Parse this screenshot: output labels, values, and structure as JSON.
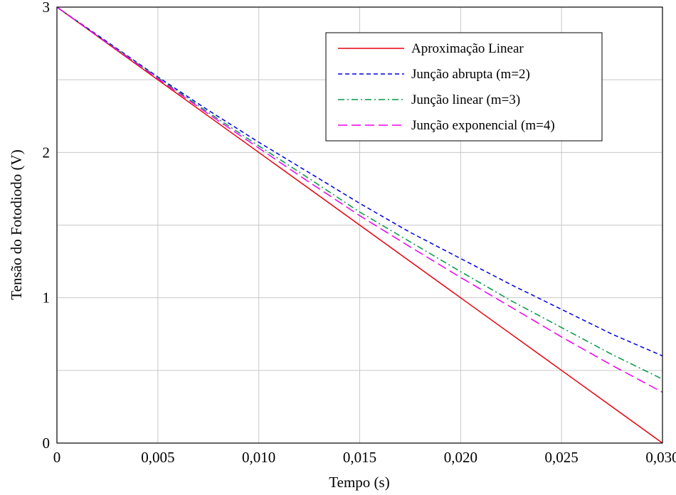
{
  "chart_data": {
    "type": "line",
    "title": "",
    "xlabel": "Tempo (s)",
    "ylabel": "Tensão do Fotodiodo (V)",
    "xlim": [
      0,
      0.03
    ],
    "ylim": [
      0,
      3
    ],
    "x_ticks": [
      0,
      0.005,
      0.01,
      0.015,
      0.02,
      0.025,
      0.03
    ],
    "x_tick_labels": [
      "0",
      "0,005",
      "0,010",
      "0,015",
      "0,020",
      "0,025",
      "0,030"
    ],
    "y_ticks": [
      0,
      1,
      2,
      3
    ],
    "y_tick_labels": [
      "0",
      "1",
      "2",
      "3"
    ],
    "grid": true,
    "legend_position": "top-right",
    "x": [
      0,
      0.0025,
      0.005,
      0.0075,
      0.01,
      0.0125,
      0.015,
      0.0175,
      0.02,
      0.0225,
      0.025,
      0.0275,
      0.03
    ],
    "series": [
      {
        "name": "Aproximação Linear",
        "color": "#e8000b",
        "dash": "solid",
        "values": [
          3.0,
          2.75,
          2.5,
          2.25,
          2.0,
          1.75,
          1.5,
          1.25,
          1.0,
          0.75,
          0.5,
          0.25,
          0.0
        ]
      },
      {
        "name": "Junção abrupta (m=2)",
        "color": "#0000e0",
        "dash": "dashed",
        "values": [
          3.0,
          2.76,
          2.52,
          2.29,
          2.07,
          1.86,
          1.65,
          1.45,
          1.27,
          1.09,
          0.92,
          0.75,
          0.6
        ]
      },
      {
        "name": "Junção linear (m=3)",
        "color": "#009944",
        "dash": "dashdot",
        "values": [
          3.0,
          2.755,
          2.515,
          2.275,
          2.045,
          1.82,
          1.59,
          1.385,
          1.18,
          0.98,
          0.795,
          0.61,
          0.44
        ]
      },
      {
        "name": "Junção exponencial (m=4)",
        "color": "#ee00ee",
        "dash": "longdash",
        "values": [
          3.0,
          2.753,
          2.508,
          2.265,
          2.03,
          1.795,
          1.565,
          1.35,
          1.14,
          0.935,
          0.73,
          0.535,
          0.35
        ]
      }
    ]
  }
}
